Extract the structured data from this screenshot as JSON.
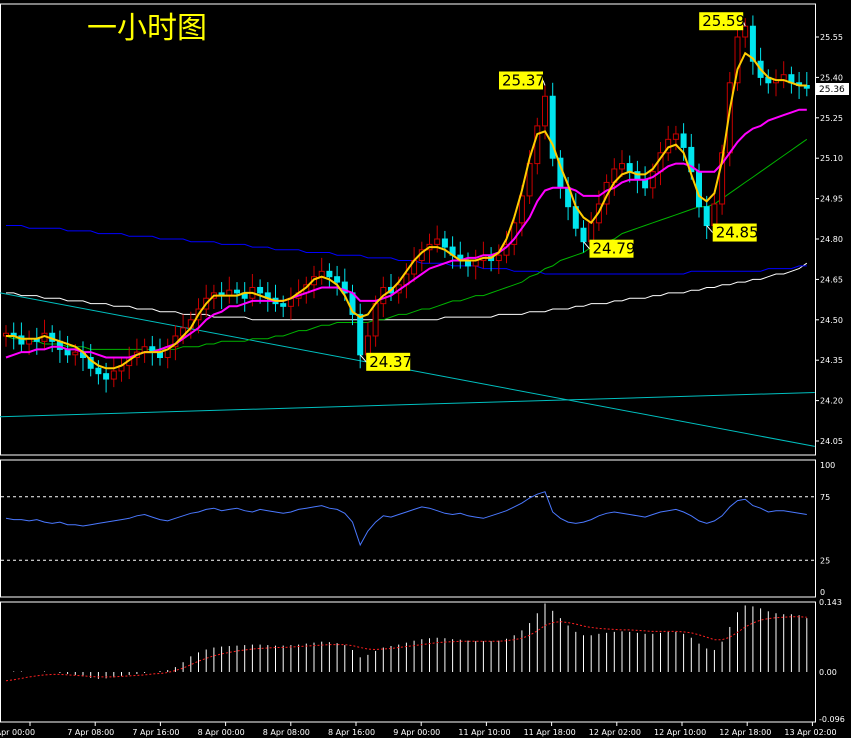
{
  "title": "一小时图",
  "price_tag": "25.36",
  "colors": {
    "background": "#000000",
    "bull_candle": "#c80000",
    "bear_candle": "#00e5ee",
    "ma_short": "#ffcc00",
    "ma_mid": "#ff00ff",
    "ma_long": "#00b400",
    "ma_longer": "#0000ff",
    "ma_longest": "#ffffff",
    "trendline": "#00bfbf",
    "rsi": "#4a78ff",
    "macd_hist": "#ffffff",
    "macd_signal": "#ff2020",
    "callout": "#ffff00"
  },
  "chart_data": [
    {
      "type": "candlestick",
      "title": "一小时图",
      "ylim": [
        24.0,
        25.62
      ],
      "y_ticks": [
        "25.55",
        "25.40",
        "25.25",
        "25.10",
        "24.95",
        "24.80",
        "24.65",
        "24.50",
        "24.35",
        "24.20",
        "24.05"
      ],
      "x_ticks": [
        "7 Apr 00:00",
        "7 Apr 08:00",
        "7 Apr 16:00",
        "8 Apr 00:00",
        "8 Apr 08:00",
        "8 Apr 16:00",
        "9 Apr 00:00",
        "11 Apr 10:00",
        "11 Apr 18:00",
        "12 Apr 02:00",
        "12 Apr 10:00",
        "12 Apr 18:00",
        "13 Apr 02:00"
      ],
      "annotations": [
        {
          "text": "25.59",
          "value": 25.59
        },
        {
          "text": "25.37",
          "value": 25.37
        },
        {
          "text": "24.85",
          "value": 24.85
        },
        {
          "text": "24.79",
          "value": 24.79
        },
        {
          "text": "24.37",
          "value": 24.37
        }
      ],
      "last_price": 25.36,
      "close": [
        24.45,
        24.44,
        24.41,
        24.43,
        24.42,
        24.45,
        24.42,
        24.39,
        24.37,
        24.38,
        24.36,
        24.32,
        24.3,
        24.28,
        24.31,
        24.33,
        24.36,
        24.38,
        24.4,
        24.38,
        24.36,
        24.4,
        24.44,
        24.47,
        24.5,
        24.54,
        24.58,
        24.6,
        24.59,
        24.61,
        24.6,
        24.58,
        24.62,
        24.6,
        24.58,
        24.56,
        24.55,
        24.58,
        24.6,
        24.63,
        24.66,
        24.68,
        24.66,
        24.64,
        24.6,
        24.52,
        24.37,
        24.44,
        24.56,
        24.62,
        24.6,
        24.63,
        24.67,
        24.72,
        24.76,
        24.78,
        24.8,
        24.77,
        24.74,
        24.72,
        24.7,
        24.72,
        24.74,
        24.72,
        24.74,
        24.78,
        24.86,
        24.96,
        25.08,
        25.22,
        25.33,
        25.1,
        24.99,
        24.92,
        24.84,
        24.79,
        24.86,
        24.93,
        25.01,
        25.06,
        25.08,
        25.05,
        25.02,
        24.99,
        25.05,
        25.12,
        25.17,
        25.19,
        25.14,
        25.05,
        24.92,
        24.85,
        24.93,
        25.12,
        25.38,
        25.55,
        25.59,
        25.46,
        25.4,
        25.38,
        25.39,
        25.41,
        25.38,
        25.37,
        25.36
      ],
      "ma_short": [
        24.44,
        24.44,
        24.43,
        24.43,
        24.43,
        24.44,
        24.43,
        24.42,
        24.41,
        24.4,
        24.38,
        24.35,
        24.33,
        24.32,
        24.32,
        24.33,
        24.35,
        24.37,
        24.38,
        24.38,
        24.38,
        24.39,
        24.41,
        24.44,
        24.47,
        24.52,
        24.56,
        24.59,
        24.59,
        24.59,
        24.59,
        24.6,
        24.6,
        24.59,
        24.58,
        24.57,
        24.57,
        24.58,
        24.6,
        24.62,
        24.65,
        24.66,
        24.65,
        24.63,
        24.59,
        24.53,
        24.51,
        24.52,
        24.56,
        24.59,
        24.61,
        24.64,
        24.68,
        24.72,
        24.75,
        24.77,
        24.77,
        24.76,
        24.74,
        24.72,
        24.72,
        24.72,
        24.73,
        24.73,
        24.75,
        24.8,
        24.88,
        24.98,
        25.1,
        25.19,
        25.2,
        25.15,
        25.07,
        25.0,
        24.92,
        24.88,
        24.86,
        24.9,
        24.96,
        25.01,
        25.04,
        25.05,
        25.04,
        25.04,
        25.06,
        25.1,
        25.14,
        25.15,
        25.12,
        25.04,
        24.96,
        24.94,
        24.97,
        25.09,
        25.28,
        25.43,
        25.49,
        25.47,
        25.43,
        25.4,
        25.39,
        25.39,
        25.38,
        25.37,
        25.37
      ],
      "ma_mid": [
        24.36,
        24.37,
        24.38,
        24.38,
        24.39,
        24.39,
        24.4,
        24.4,
        24.39,
        24.39,
        24.38,
        24.38,
        24.37,
        24.36,
        24.36,
        24.36,
        24.36,
        24.37,
        24.38,
        24.38,
        24.39,
        24.4,
        24.41,
        24.43,
        24.45,
        24.47,
        24.5,
        24.52,
        24.53,
        24.55,
        24.55,
        24.56,
        24.57,
        24.57,
        24.57,
        24.57,
        24.57,
        24.58,
        24.59,
        24.6,
        24.61,
        24.62,
        24.62,
        24.62,
        24.61,
        24.6,
        24.57,
        24.57,
        24.57,
        24.58,
        24.59,
        24.61,
        24.63,
        24.65,
        24.67,
        24.69,
        24.7,
        24.71,
        24.72,
        24.72,
        24.73,
        24.73,
        24.74,
        24.74,
        24.75,
        24.77,
        24.8,
        24.84,
        24.88,
        24.94,
        24.98,
        24.99,
        24.99,
        24.99,
        24.98,
        24.96,
        24.96,
        24.96,
        24.98,
        24.99,
        25.01,
        25.02,
        25.02,
        25.02,
        25.03,
        25.05,
        25.07,
        25.08,
        25.08,
        25.07,
        25.05,
        25.05,
        25.05,
        25.08,
        25.12,
        25.16,
        25.19,
        25.21,
        25.22,
        25.24,
        25.25,
        25.26,
        25.27,
        25.28,
        25.28
      ],
      "ma_long": [
        24.44,
        24.43,
        24.43,
        24.42,
        24.42,
        24.41,
        24.41,
        24.41,
        24.4,
        24.4,
        24.4,
        24.39,
        24.39,
        24.39,
        24.39,
        24.39,
        24.39,
        24.39,
        24.39,
        24.39,
        24.39,
        24.39,
        24.39,
        24.4,
        24.4,
        24.4,
        24.41,
        24.41,
        24.42,
        24.42,
        24.42,
        24.42,
        24.43,
        24.43,
        24.43,
        24.44,
        24.44,
        24.45,
        24.46,
        24.46,
        24.47,
        24.48,
        24.48,
        24.49,
        24.49,
        24.49,
        24.49,
        24.49,
        24.5,
        24.5,
        24.51,
        24.52,
        24.52,
        24.53,
        24.54,
        24.54,
        24.55,
        24.56,
        24.57,
        24.57,
        24.58,
        24.59,
        24.59,
        24.6,
        24.61,
        24.62,
        24.63,
        24.64,
        24.66,
        24.67,
        24.69,
        24.7,
        24.72,
        24.73,
        24.74,
        24.75,
        24.77,
        24.78,
        24.79,
        24.8,
        24.82,
        24.83,
        24.84,
        24.85,
        24.86,
        24.87,
        24.88,
        24.89,
        24.9,
        24.91,
        24.92,
        24.92,
        24.93,
        24.95,
        24.97,
        24.99,
        25.01,
        25.03,
        25.05,
        25.07,
        25.09,
        25.11,
        25.13,
        25.15,
        25.17
      ],
      "ma_longer": [
        24.85,
        24.85,
        24.85,
        24.84,
        24.84,
        24.84,
        24.84,
        24.84,
        24.83,
        24.83,
        24.83,
        24.83,
        24.82,
        24.82,
        24.82,
        24.82,
        24.81,
        24.81,
        24.81,
        24.81,
        24.8,
        24.8,
        24.8,
        24.8,
        24.79,
        24.79,
        24.79,
        24.79,
        24.78,
        24.78,
        24.78,
        24.78,
        24.77,
        24.77,
        24.77,
        24.76,
        24.76,
        24.76,
        24.76,
        24.75,
        24.75,
        24.75,
        24.75,
        24.74,
        24.74,
        24.74,
        24.74,
        24.73,
        24.73,
        24.73,
        24.73,
        24.72,
        24.72,
        24.72,
        24.71,
        24.71,
        24.71,
        24.71,
        24.7,
        24.7,
        24.7,
        24.7,
        24.69,
        24.69,
        24.69,
        24.69,
        24.68,
        24.68,
        24.68,
        24.68,
        24.67,
        24.67,
        24.67,
        24.67,
        24.67,
        24.67,
        24.67,
        24.67,
        24.67,
        24.67,
        24.67,
        24.67,
        24.67,
        24.67,
        24.67,
        24.67,
        24.67,
        24.67,
        24.67,
        24.68,
        24.68,
        24.68,
        24.68,
        24.68,
        24.68,
        24.68,
        24.68,
        24.68,
        24.68,
        24.69,
        24.69,
        24.69,
        24.69,
        24.7,
        24.7
      ],
      "ma_longest": [
        24.6,
        24.6,
        24.59,
        24.59,
        24.59,
        24.58,
        24.58,
        24.58,
        24.57,
        24.57,
        24.57,
        24.56,
        24.56,
        24.56,
        24.55,
        24.55,
        24.55,
        24.54,
        24.54,
        24.54,
        24.53,
        24.53,
        24.53,
        24.52,
        24.52,
        24.52,
        24.52,
        24.51,
        24.51,
        24.51,
        24.51,
        24.51,
        24.5,
        24.5,
        24.5,
        24.5,
        24.5,
        24.5,
        24.5,
        24.5,
        24.5,
        24.5,
        24.5,
        24.5,
        24.5,
        24.5,
        24.5,
        24.5,
        24.5,
        24.5,
        24.5,
        24.5,
        24.5,
        24.5,
        24.5,
        24.5,
        24.5,
        24.51,
        24.51,
        24.51,
        24.51,
        24.51,
        24.51,
        24.51,
        24.52,
        24.52,
        24.52,
        24.52,
        24.53,
        24.53,
        24.53,
        24.54,
        24.54,
        24.54,
        24.55,
        24.55,
        24.56,
        24.56,
        24.56,
        24.57,
        24.57,
        24.58,
        24.58,
        24.58,
        24.59,
        24.59,
        24.6,
        24.6,
        24.6,
        24.61,
        24.61,
        24.62,
        24.62,
        24.63,
        24.63,
        24.64,
        24.64,
        24.65,
        24.65,
        24.66,
        24.67,
        24.67,
        24.68,
        24.69,
        24.71
      ],
      "trendlines": [
        {
          "from": [
            0,
            24.6
          ],
          "to": [
            104,
            24.03
          ]
        },
        {
          "from": [
            0,
            24.14
          ],
          "to": [
            104,
            24.23
          ]
        }
      ]
    },
    {
      "type": "line",
      "ylim": [
        0,
        100
      ],
      "y_ticks": [
        "100",
        "75",
        "25",
        "0"
      ],
      "levels": [
        75,
        25
      ],
      "values": [
        58,
        57,
        57,
        56,
        57,
        55,
        54,
        55,
        53,
        53,
        52,
        53,
        54,
        55,
        56,
        57,
        58,
        60,
        61,
        59,
        57,
        56,
        58,
        60,
        62,
        63,
        65,
        66,
        64,
        65,
        66,
        64,
        63,
        65,
        64,
        63,
        62,
        63,
        65,
        66,
        67,
        68,
        66,
        65,
        62,
        55,
        37,
        48,
        55,
        60,
        59,
        61,
        63,
        65,
        67,
        66,
        64,
        62,
        61,
        62,
        60,
        59,
        58,
        60,
        62,
        64,
        67,
        70,
        74,
        77,
        79,
        63,
        58,
        55,
        54,
        55,
        57,
        60,
        62,
        63,
        62,
        61,
        60,
        59,
        61,
        63,
        64,
        65,
        63,
        60,
        56,
        54,
        56,
        60,
        67,
        72,
        73,
        68,
        66,
        63,
        64,
        64,
        63,
        62,
        61
      ]
    },
    {
      "type": "bar",
      "ylim": [
        -0.096,
        0.143
      ],
      "y_ticks": [
        "0.143",
        "0.00",
        "-0.096"
      ],
      "values": [
        0.0,
        0.001,
        0.001,
        0.0,
        0.0,
        0.001,
        0.0,
        -0.002,
        -0.004,
        -0.006,
        -0.009,
        -0.012,
        -0.014,
        -0.013,
        -0.011,
        -0.008,
        -0.006,
        -0.004,
        -0.002,
        0.0,
        0.002,
        0.004,
        0.01,
        0.02,
        0.032,
        0.04,
        0.046,
        0.05,
        0.052,
        0.053,
        0.054,
        0.055,
        0.056,
        0.056,
        0.055,
        0.054,
        0.054,
        0.055,
        0.056,
        0.058,
        0.06,
        0.062,
        0.061,
        0.059,
        0.055,
        0.045,
        0.03,
        0.035,
        0.043,
        0.05,
        0.053,
        0.056,
        0.06,
        0.064,
        0.067,
        0.069,
        0.07,
        0.069,
        0.067,
        0.066,
        0.064,
        0.063,
        0.063,
        0.063,
        0.064,
        0.068,
        0.075,
        0.085,
        0.1,
        0.12,
        0.14,
        0.125,
        0.11,
        0.095,
        0.082,
        0.075,
        0.075,
        0.078,
        0.08,
        0.082,
        0.083,
        0.082,
        0.08,
        0.078,
        0.078,
        0.08,
        0.082,
        0.082,
        0.078,
        0.07,
        0.058,
        0.048,
        0.045,
        0.062,
        0.092,
        0.122,
        0.136,
        0.134,
        0.13,
        0.124,
        0.12,
        0.118,
        0.118,
        0.116,
        0.11
      ],
      "signal": [
        -0.018,
        -0.016,
        -0.013,
        -0.01,
        -0.008,
        -0.006,
        -0.005,
        -0.005,
        -0.006,
        -0.007,
        -0.008,
        -0.009,
        -0.01,
        -0.01,
        -0.01,
        -0.009,
        -0.008,
        -0.007,
        -0.006,
        -0.004,
        -0.003,
        -0.001,
        0.003,
        0.008,
        0.015,
        0.022,
        0.028,
        0.033,
        0.037,
        0.04,
        0.043,
        0.045,
        0.047,
        0.048,
        0.049,
        0.05,
        0.05,
        0.051,
        0.052,
        0.053,
        0.054,
        0.055,
        0.056,
        0.056,
        0.056,
        0.054,
        0.05,
        0.047,
        0.046,
        0.047,
        0.048,
        0.05,
        0.052,
        0.054,
        0.056,
        0.058,
        0.06,
        0.061,
        0.062,
        0.063,
        0.063,
        0.063,
        0.063,
        0.063,
        0.063,
        0.064,
        0.066,
        0.069,
        0.075,
        0.084,
        0.095,
        0.101,
        0.103,
        0.101,
        0.098,
        0.094,
        0.091,
        0.089,
        0.088,
        0.087,
        0.086,
        0.086,
        0.085,
        0.084,
        0.083,
        0.083,
        0.083,
        0.083,
        0.082,
        0.08,
        0.076,
        0.071,
        0.066,
        0.066,
        0.071,
        0.081,
        0.092,
        0.1,
        0.106,
        0.109,
        0.111,
        0.112,
        0.113,
        0.113,
        0.112
      ]
    }
  ]
}
